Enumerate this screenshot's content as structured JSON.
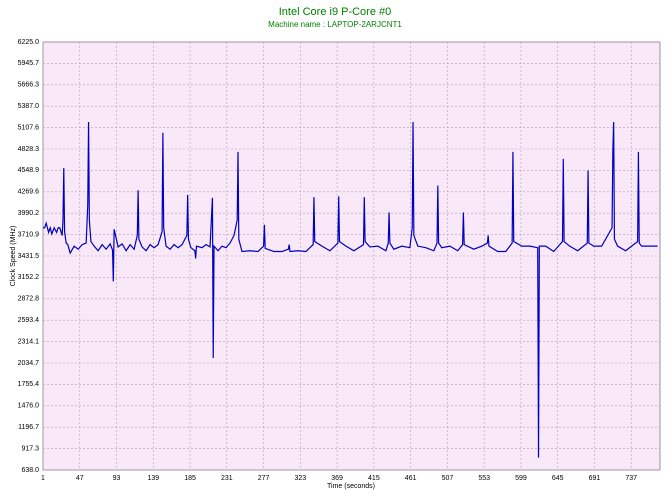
{
  "chart_data": {
    "type": "line",
    "title": "Intel Core i9 P-Core #0",
    "subtitle": "Machine name : LAPTOP-2ARJCNT1",
    "x_label": "Time (seconds)",
    "y_label": "Clock Speed (MHz)",
    "grid": true,
    "xlim": [
      1,
      773
    ],
    "ylim": [
      638,
      6225
    ],
    "xticks": [
      1,
      47,
      93,
      139,
      185,
      231,
      277,
      323,
      369,
      415,
      461,
      507,
      553,
      599,
      645,
      691,
      737
    ],
    "yticks": [
      {
        "value": 638,
        "label": "638.0"
      },
      {
        "value": 917.3,
        "label": "917.3"
      },
      {
        "value": 1196.7,
        "label": "1196.7"
      },
      {
        "value": 1476,
        "label": "1476.0"
      },
      {
        "value": 1755.4,
        "label": "1755.4"
      },
      {
        "value": 2034.7,
        "label": "2034.7"
      },
      {
        "value": 2314.1,
        "label": "2314.1"
      },
      {
        "value": 2593.4,
        "label": "2593.4"
      },
      {
        "value": 2872.8,
        "label": "2872.8"
      },
      {
        "value": 3152.2,
        "label": "3152.2"
      },
      {
        "value": 3431.5,
        "label": "3431.5"
      },
      {
        "value": 3710.9,
        "label": "3710.9"
      },
      {
        "value": 3990.2,
        "label": "3990.2"
      },
      {
        "value": 4269.6,
        "label": "4269.6"
      },
      {
        "value": 4548.9,
        "label": "4548.9"
      },
      {
        "value": 4828.3,
        "label": "4828.3"
      },
      {
        "value": 5107.6,
        "label": "5107.6"
      },
      {
        "value": 5387,
        "label": "5387.0"
      },
      {
        "value": 5666.3,
        "label": "5666.3"
      },
      {
        "value": 5945.7,
        "label": "5945.7"
      },
      {
        "value": 6225,
        "label": "6225.0"
      }
    ],
    "x": [
      1,
      3,
      5,
      8,
      10,
      12,
      15,
      18,
      20,
      22,
      25,
      26,
      27,
      28,
      30,
      32,
      35,
      40,
      45,
      50,
      55,
      57,
      58,
      59,
      61,
      65,
      70,
      75,
      80,
      85,
      88,
      89,
      90,
      95,
      100,
      105,
      110,
      115,
      119,
      120,
      121,
      125,
      130,
      135,
      140,
      145,
      150,
      151,
      152,
      155,
      160,
      165,
      170,
      175,
      181,
      182,
      183,
      186,
      191,
      192,
      193,
      200,
      205,
      210,
      213,
      214,
      215,
      220,
      225,
      230,
      235,
      240,
      244,
      245,
      246,
      250,
      260,
      270,
      277,
      278,
      279,
      290,
      300,
      308,
      309,
      310,
      320,
      330,
      339,
      340,
      341,
      350,
      360,
      370,
      371,
      372,
      380,
      390,
      402,
      403,
      404,
      410,
      420,
      430,
      433,
      434,
      435,
      440,
      450,
      460,
      463,
      464,
      465,
      470,
      480,
      490,
      494,
      495,
      496,
      500,
      510,
      520,
      526,
      527,
      528,
      540,
      550,
      557,
      558,
      559,
      570,
      580,
      588,
      589,
      590,
      600,
      610,
      620,
      621,
      622,
      630,
      640,
      651,
      652,
      653,
      660,
      670,
      682,
      683,
      684,
      690,
      700,
      713,
      714,
      715,
      716,
      720,
      730,
      745,
      746,
      747,
      750,
      760,
      770
    ],
    "series": [
      {
        "name": "Clock Speed",
        "color": "#0000c0",
        "values": [
          3800,
          3800,
          3860,
          3740,
          3800,
          3720,
          3800,
          3740,
          3800,
          3800,
          3700,
          3900,
          4580,
          3750,
          3600,
          3580,
          3470,
          3560,
          3520,
          3580,
          3600,
          4100,
          5180,
          3900,
          3620,
          3560,
          3500,
          3580,
          3520,
          3590,
          3510,
          3100,
          3780,
          3550,
          3590,
          3500,
          3580,
          3520,
          3700,
          4290,
          3650,
          3550,
          3500,
          3580,
          3540,
          3580,
          3750,
          5040,
          3800,
          3560,
          3520,
          3580,
          3540,
          3580,
          3700,
          4230,
          3650,
          3540,
          3500,
          3400,
          3560,
          3540,
          3580,
          3550,
          4190,
          2100,
          3560,
          3500,
          3560,
          3540,
          3600,
          3700,
          3900,
          4790,
          3650,
          3490,
          3500,
          3490,
          3560,
          3840,
          3530,
          3490,
          3490,
          3520,
          3580,
          3490,
          3500,
          3490,
          3580,
          4200,
          3620,
          3560,
          3500,
          3600,
          4210,
          3620,
          3560,
          3500,
          3580,
          4200,
          3620,
          3550,
          3560,
          3500,
          3600,
          4000,
          3600,
          3520,
          3560,
          3540,
          3800,
          5180,
          3700,
          3560,
          3540,
          3500,
          3600,
          4350,
          3600,
          3540,
          3560,
          3500,
          3580,
          4000,
          3580,
          3520,
          3560,
          3600,
          3700,
          3560,
          3490,
          3490,
          3600,
          4790,
          3620,
          3560,
          3560,
          3540,
          800,
          3560,
          3560,
          3490,
          3620,
          4700,
          3620,
          3560,
          3500,
          3600,
          4550,
          3600,
          3560,
          3560,
          3800,
          4800,
          5180,
          3650,
          3560,
          3500,
          3620,
          4790,
          3600,
          3560,
          3560,
          3560
        ]
      }
    ]
  }
}
